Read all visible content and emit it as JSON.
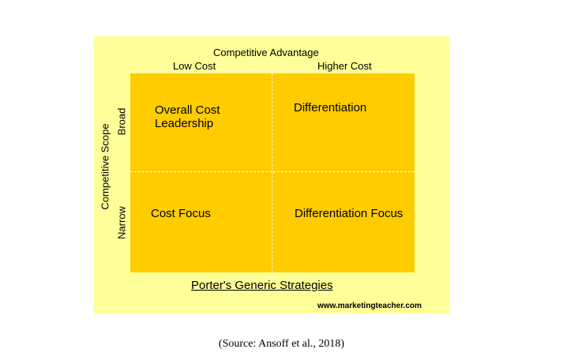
{
  "diagram": {
    "title": "Competitive Advantage",
    "columns": [
      {
        "label": "Low Cost"
      },
      {
        "label": "Higher Cost"
      }
    ],
    "row_axis_label": "Competitive Scope",
    "rows": [
      {
        "label": "Broad"
      },
      {
        "label": "Narrow"
      }
    ],
    "cells": [
      {
        "label": "Overall Cost Leadership"
      },
      {
        "label": "Differentiation"
      },
      {
        "label": "Cost Focus"
      },
      {
        "label": "Differentiation Focus"
      }
    ],
    "footer_title": "Porter's Generic Strategies",
    "website": "www.marketingteacher.com",
    "colors": {
      "panel_background": "#ffff99",
      "grid_fill": "#ffcc00",
      "divider": "#ffffff"
    }
  },
  "caption": "(Source: Ansoff et al., 2018)"
}
